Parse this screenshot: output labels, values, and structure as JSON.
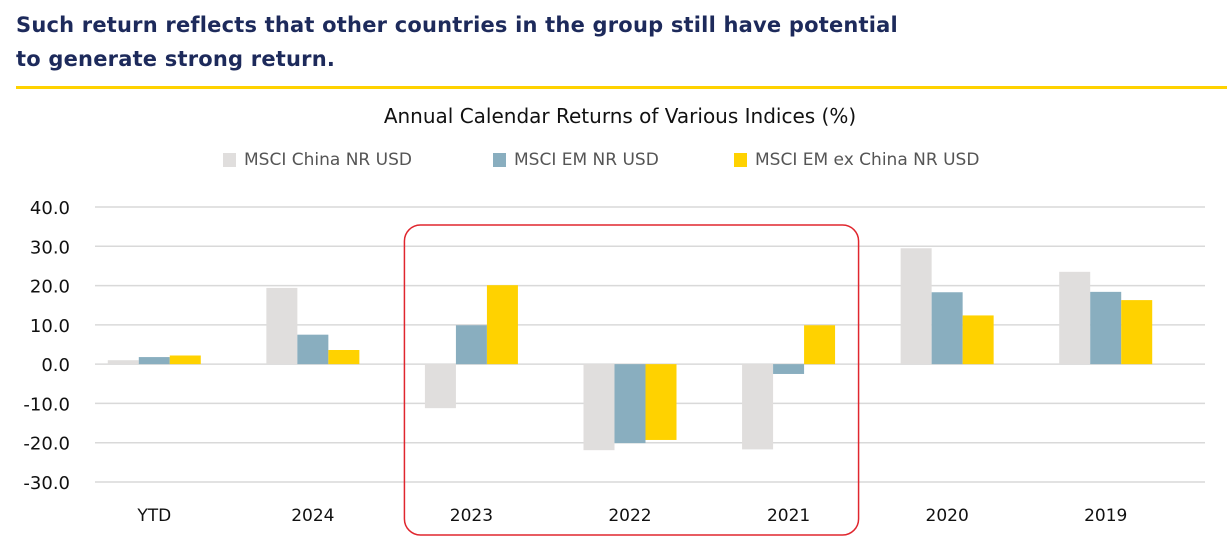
{
  "headline": {
    "line1": "Such return reflects that other countries in the group still have potential",
    "line2": "to generate strong return."
  },
  "colors": {
    "headline": "#1d2a5b",
    "rule": "#ffd200",
    "highlight_box": "#e0262e",
    "grid": "#d9d9d9"
  },
  "chart_data": {
    "type": "bar",
    "title": "Annual Calendar Returns of Various Indices (%)",
    "xlabel": "",
    "ylabel": "",
    "categories": [
      "YTD",
      "2024",
      "2023",
      "2022",
      "2021",
      "2020",
      "2019"
    ],
    "series": [
      {
        "name": "MSCI China NR USD",
        "color": "#e0dedd",
        "values": [
          1.0,
          19.4,
          -11.2,
          -21.9,
          -21.7,
          29.5,
          23.5
        ]
      },
      {
        "name": "MSCI EM NR USD",
        "color": "#89aebf",
        "values": [
          1.8,
          7.5,
          9.9,
          -20.1,
          -2.5,
          18.3,
          18.4
        ]
      },
      {
        "name": "MSCI EM ex China NR USD",
        "color": "#ffd200",
        "values": [
          2.2,
          3.6,
          20.1,
          -19.3,
          9.9,
          12.4,
          16.3
        ]
      }
    ],
    "ylim": [
      -30,
      40
    ],
    "yticks": [
      "40.0",
      "30.0",
      "20.0",
      "10.0",
      "0.0",
      "-10.0",
      "-20.0",
      "-30.0"
    ],
    "ytick_values": [
      40,
      30,
      20,
      10,
      0,
      -10,
      -20,
      -30
    ],
    "grid": true,
    "legend_position": "top-center",
    "annotation": {
      "type": "highlight-box",
      "categories": [
        "2023",
        "2022",
        "2021"
      ]
    }
  }
}
